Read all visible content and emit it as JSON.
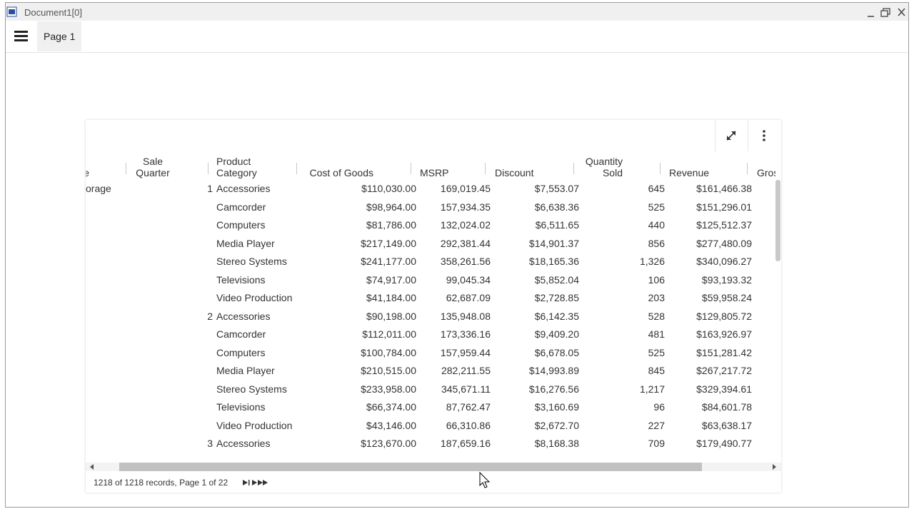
{
  "window": {
    "title": "Document1[0]"
  },
  "toolbar": {
    "tab": "Page 1"
  },
  "table": {
    "headers": [
      "e",
      "Sale\nQuarter",
      "Product\nCategory",
      "Cost of Goods",
      "MSRP",
      "Discount",
      "Quantity\nSold",
      "Revenue",
      "Gros"
    ],
    "rows": [
      [
        "orage",
        "1",
        "Accessories",
        "$110,030.00",
        "169,019.45",
        "$7,553.07",
        "645",
        "$161,466.38"
      ],
      [
        null,
        null,
        "Camcorder",
        "$98,964.00",
        "157,934.35",
        "$6,638.36",
        "525",
        "$151,296.01"
      ],
      [
        null,
        null,
        "Computers",
        "$81,786.00",
        "132,024.02",
        "$6,511.65",
        "440",
        "$125,512.37"
      ],
      [
        null,
        null,
        "Media Player",
        "$217,149.00",
        "292,381.44",
        "$14,901.37",
        "856",
        "$277,480.09"
      ],
      [
        null,
        null,
        "Stereo Systems",
        "$241,177.00",
        "358,261.56",
        "$18,165.36",
        "1,326",
        "$340,096.27"
      ],
      [
        null,
        null,
        "Televisions",
        "$74,917.00",
        "99,045.34",
        "$5,852.04",
        "106",
        "$93,193.32"
      ],
      [
        null,
        null,
        "Video Production",
        "$41,184.00",
        "62,687.09",
        "$2,728.85",
        "203",
        "$59,958.24"
      ],
      [
        null,
        "2",
        "Accessories",
        "$90,198.00",
        "135,948.08",
        "$6,142.35",
        "528",
        "$129,805.72"
      ],
      [
        null,
        null,
        "Camcorder",
        "$112,011.00",
        "173,336.16",
        "$9,409.20",
        "481",
        "$163,926.97"
      ],
      [
        null,
        null,
        "Computers",
        "$100,784.00",
        "157,959.44",
        "$6,678.05",
        "525",
        "$151,281.42"
      ],
      [
        null,
        null,
        "Media Player",
        "$210,515.00",
        "282,211.55",
        "$14,993.89",
        "845",
        "$267,217.72"
      ],
      [
        null,
        null,
        "Stereo Systems",
        "$233,958.00",
        "345,671.11",
        "$16,276.56",
        "1,217",
        "$329,394.61"
      ],
      [
        null,
        null,
        "Televisions",
        "$66,374.00",
        "87,762.47",
        "$3,160.69",
        "96",
        "$84,601.78"
      ],
      [
        null,
        null,
        "Video Production",
        "$43,146.00",
        "66,310.86",
        "$2,672.70",
        "227",
        "$63,638.17"
      ],
      [
        null,
        "3",
        "Accessories",
        "$123,670.00",
        "187,659.16",
        "$8,168.38",
        "709",
        "$179,490.77"
      ]
    ],
    "status": "1218 of 1218 records, Page 1 of 22"
  }
}
